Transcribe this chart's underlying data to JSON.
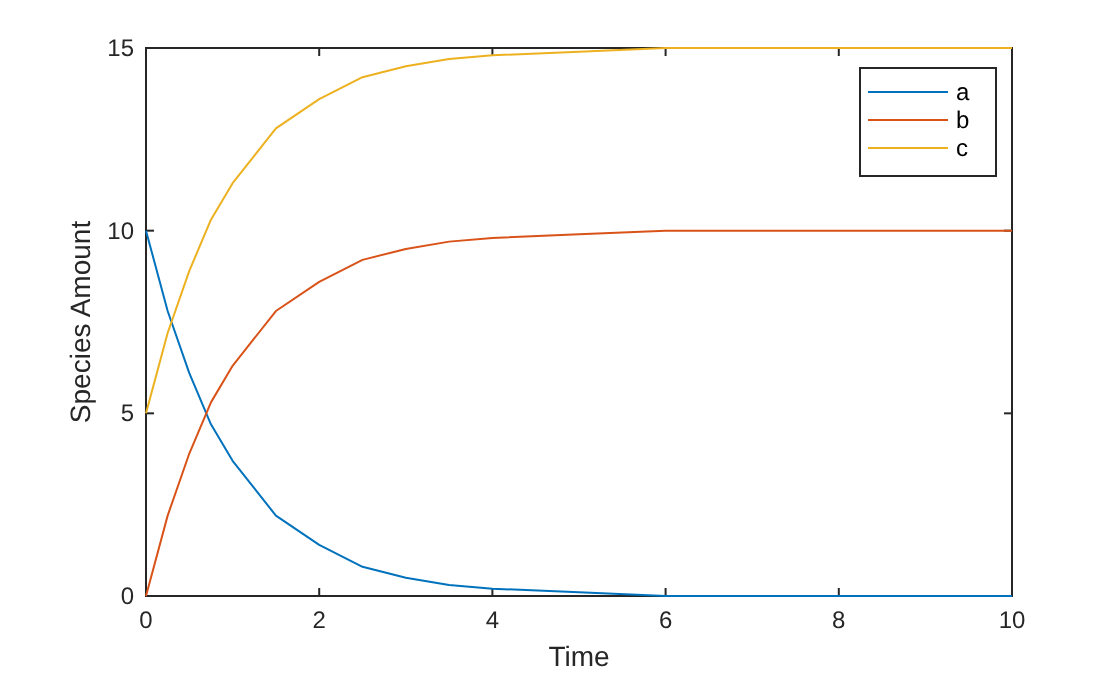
{
  "chart_data": {
    "type": "line",
    "xlabel": "Time",
    "ylabel": "Species Amount",
    "x": [
      0,
      0.25,
      0.5,
      0.75,
      1,
      1.5,
      2,
      2.5,
      3,
      3.5,
      4,
      5,
      6,
      7,
      8,
      10
    ],
    "series": [
      {
        "name": "a",
        "color": "#0072bd",
        "values": [
          10,
          7.8,
          6.1,
          4.7,
          3.7,
          2.2,
          1.4,
          0.8,
          0.5,
          0.3,
          0.2,
          0.1,
          0,
          0,
          0,
          0
        ]
      },
      {
        "name": "b",
        "color": "#d95319",
        "values": [
          0,
          2.2,
          3.9,
          5.3,
          6.3,
          7.8,
          8.6,
          9.2,
          9.5,
          9.7,
          9.8,
          9.9,
          10,
          10,
          10,
          10
        ]
      },
      {
        "name": "c",
        "color": "#edb120",
        "values": [
          5,
          7.2,
          8.9,
          10.3,
          11.3,
          12.8,
          13.6,
          14.2,
          14.5,
          14.7,
          14.8,
          14.9,
          15,
          15,
          15,
          15
        ]
      }
    ],
    "xlim": [
      0,
      10
    ],
    "xticks": [
      0,
      2,
      4,
      6,
      8,
      10
    ],
    "ylim": [
      0,
      15
    ],
    "yticks": [
      0,
      5,
      10,
      15
    ],
    "grid": false,
    "legend": "top right",
    "marker": "none",
    "line_style": "solid"
  }
}
